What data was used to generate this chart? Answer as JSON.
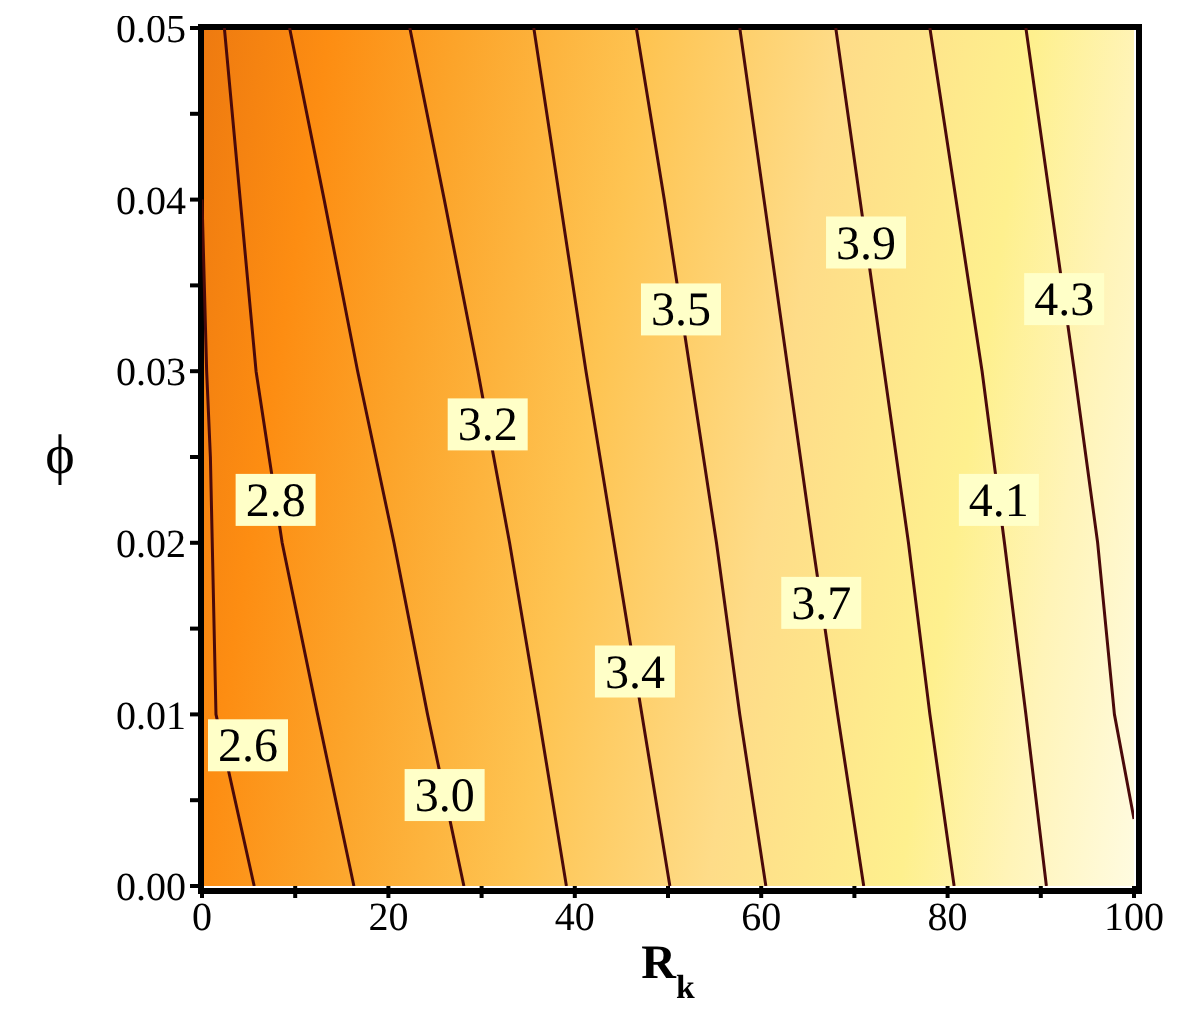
{
  "chart_data": {
    "type": "line",
    "xlabel": "R$_{k}$",
    "ylabel": "ϕ",
    "xlim": [
      0,
      100
    ],
    "xticks": [
      0,
      {
        "value": 10,
        "label": null
      },
      20,
      {
        "value": 30,
        "label": null
      },
      40,
      {
        "value": 50,
        "label": null
      },
      60,
      {
        "value": 70,
        "label": null
      },
      80,
      {
        "value": 90,
        "label": null
      },
      100
    ],
    "ylim": [
      0,
      0.05
    ],
    "yticks": [
      {
        "value": 0,
        "label": "0.00"
      },
      {
        "value": 0.005,
        "label": null
      },
      {
        "value": 0.01,
        "label": "0.01"
      },
      {
        "value": 0.015,
        "label": null
      },
      {
        "value": 0.02,
        "label": "0.02"
      },
      {
        "value": 0.025,
        "label": null
      },
      {
        "value": 0.03,
        "label": "0.03"
      },
      {
        "value": 0.035,
        "label": null
      },
      {
        "value": 0.04,
        "label": "0.04"
      },
      {
        "value": 0.045,
        "label": null
      },
      {
        "value": 0.05,
        "label": "0.05"
      }
    ],
    "marker": "none",
    "series": [
      {
        "name": "2.6",
        "color": "#4a0a0a",
        "x": [
          5.6,
          1.5,
          0.9,
          0.5,
          0
        ],
        "values": [
          0,
          0.01,
          0.025,
          0.03,
          0.04
        ]
      },
      {
        "name": "2.8",
        "color": "#4a0a0a",
        "x": [
          16.3,
          12.4,
          8.6,
          5.8,
          4.1,
          2.4
        ],
        "values": [
          0,
          0.01,
          0.02,
          0.03,
          0.04,
          0.05
        ]
      },
      {
        "name": "3.0",
        "color": "#4a0a0a",
        "x": [
          28.1,
          24.2,
          20.6,
          16.7,
          13.1,
          9.4
        ],
        "values": [
          0,
          0.01,
          0.02,
          0.03,
          0.04,
          0.05
        ]
      },
      {
        "name": "3.2",
        "color": "#4a0a0a",
        "x": [
          39.1,
          36.1,
          33.0,
          29.6,
          26.0,
          22.3
        ],
        "values": [
          0,
          0.01,
          0.02,
          0.03,
          0.04,
          0.05
        ]
      },
      {
        "name": "3.4",
        "color": "#4a0a0a",
        "x": [
          50.2,
          47.2,
          44.2,
          41.2,
          38.4,
          35.6
        ],
        "values": [
          0,
          0.01,
          0.02,
          0.03,
          0.04,
          0.05
        ]
      },
      {
        "name": "3.5",
        "color": "#4a0a0a",
        "x": [
          60.5,
          57.7,
          55.2,
          52.4,
          49.6,
          46.6
        ],
        "values": [
          0,
          0.01,
          0.02,
          0.03,
          0.04,
          0.05
        ]
      },
      {
        "name": "3.7",
        "color": "#4a0a0a",
        "x": [
          71.0,
          68.2,
          65.5,
          62.9,
          60.3,
          57.7
        ],
        "values": [
          0,
          0.01,
          0.02,
          0.03,
          0.04,
          0.05
        ]
      },
      {
        "name": "3.9",
        "color": "#4a0a0a",
        "x": [
          80.7,
          78.1,
          75.8,
          73.2,
          70.6,
          68.0
        ],
        "values": [
          0,
          0.01,
          0.02,
          0.03,
          0.04,
          0.05
        ]
      },
      {
        "name": "4.1",
        "color": "#4a0a0a",
        "x": [
          90.6,
          88.4,
          86.1,
          83.7,
          80.9,
          78.1
        ],
        "values": [
          0,
          0.01,
          0.02,
          0.03,
          0.04,
          0.05
        ]
      },
      {
        "name": "4.3",
        "color": "#4a0a0a",
        "x": [
          100,
          97.9,
          96.1,
          93.6,
          91.0,
          88.4
        ],
        "values": [
          0.0039,
          0.01,
          0.02,
          0.03,
          0.04,
          0.05
        ]
      }
    ]
  }
}
